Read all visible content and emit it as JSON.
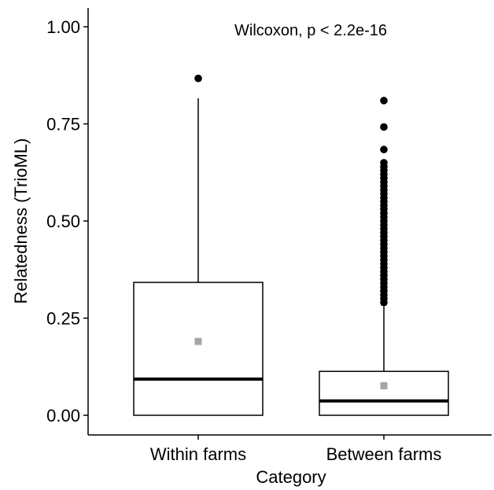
{
  "chart_data": {
    "type": "boxplot",
    "annotation": "Wilcoxon, p < 2.2e-16",
    "xlabel": "Category",
    "ylabel": "Relatedness (TrioML)",
    "ylim": [
      0,
      1.05
    ],
    "yticks": [
      {
        "value": 0.0,
        "label": "0.00"
      },
      {
        "value": 0.25,
        "label": "0.25"
      },
      {
        "value": 0.5,
        "label": "0.50"
      },
      {
        "value": 0.75,
        "label": "0.75"
      },
      {
        "value": 1.0,
        "label": "1.00"
      }
    ],
    "categories": [
      "Within farms",
      "Between farms"
    ],
    "boxes": [
      {
        "category": "Within farms",
        "min": 0.0,
        "q1": 0.0,
        "median": 0.093,
        "q3": 0.342,
        "whisker_high": 0.816,
        "mean": 0.19,
        "outliers": [
          0.867
        ]
      },
      {
        "category": "Between farms",
        "min": 0.0,
        "q1": 0.0,
        "median": 0.037,
        "q3": 0.113,
        "whisker_high": 0.28,
        "mean": 0.076,
        "outliers": [
          0.29,
          0.3,
          0.31,
          0.32,
          0.33,
          0.34,
          0.35,
          0.36,
          0.37,
          0.38,
          0.39,
          0.4,
          0.41,
          0.42,
          0.43,
          0.44,
          0.45,
          0.46,
          0.47,
          0.48,
          0.49,
          0.5,
          0.51,
          0.52,
          0.53,
          0.54,
          0.55,
          0.56,
          0.57,
          0.58,
          0.59,
          0.6,
          0.61,
          0.62,
          0.63,
          0.64,
          0.65,
          0.684,
          0.742,
          0.81
        ]
      }
    ],
    "colors": {
      "box_stroke": "#000000",
      "mean_marker": "#a6a6a6",
      "outlier": "#000000"
    }
  }
}
